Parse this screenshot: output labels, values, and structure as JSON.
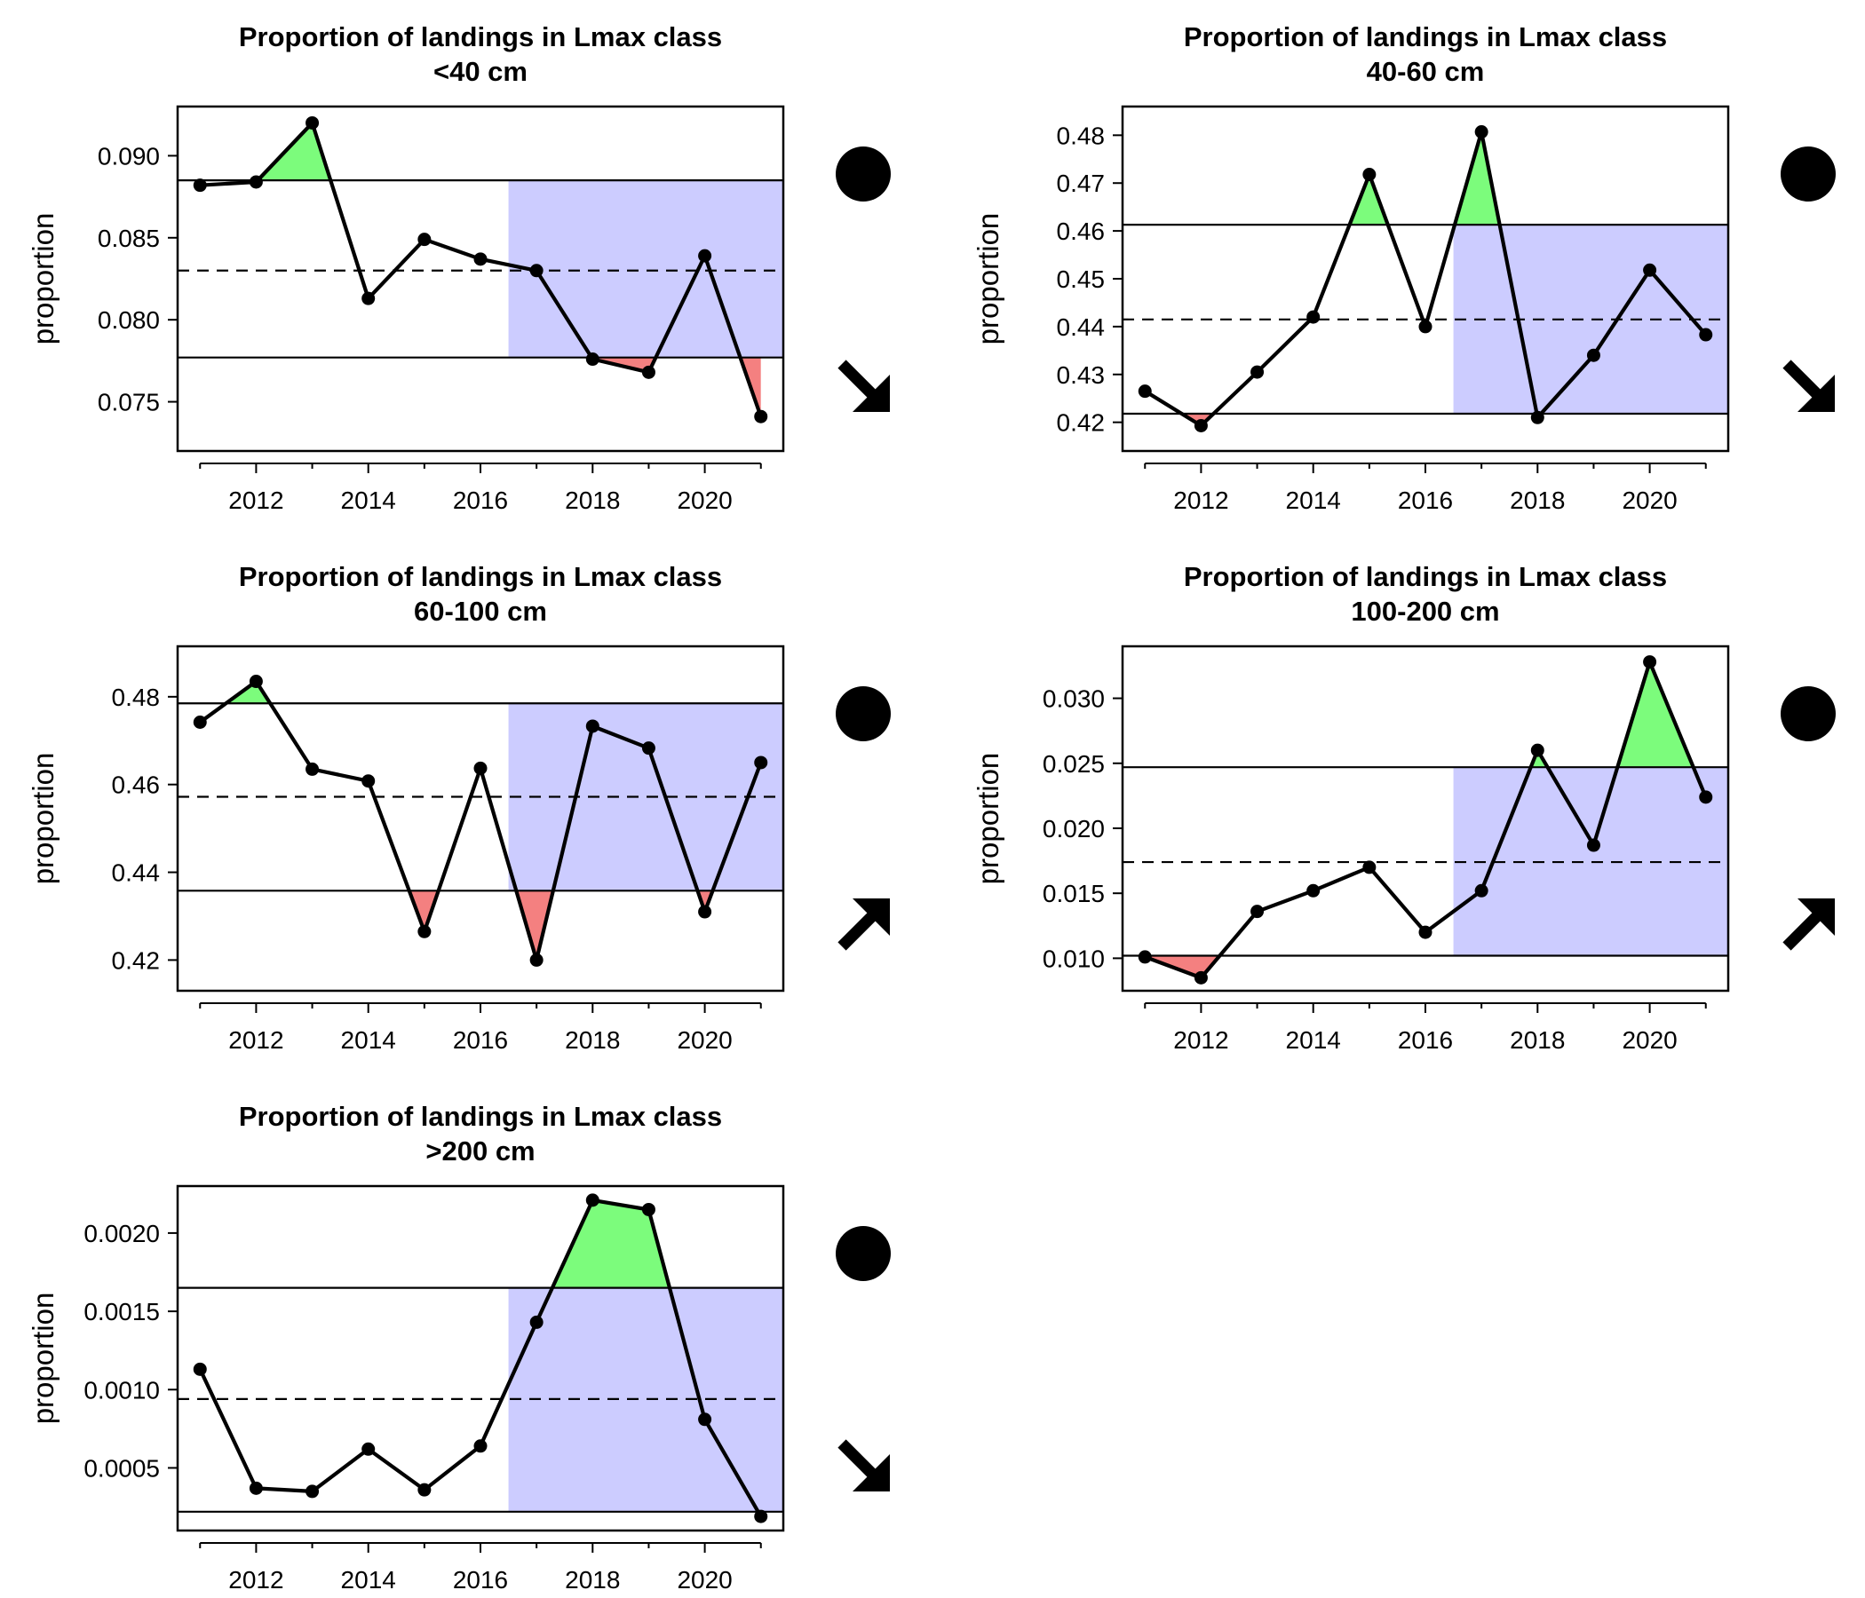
{
  "chart_data": [
    {
      "type": "line",
      "title": "Proportion of landings in Lmax class",
      "subtitle": "<40 cm",
      "ylabel": "proportion",
      "xlabel": "",
      "x": [
        2011,
        2012,
        2013,
        2014,
        2015,
        2016,
        2017,
        2018,
        2019,
        2020,
        2021
      ],
      "values": [
        0.0882,
        0.0884,
        0.092,
        0.0813,
        0.0849,
        0.0837,
        0.083,
        0.0776,
        0.0768,
        0.0839,
        0.0741
      ],
      "upper_line": 0.0885,
      "mean_line": 0.083,
      "lower_line": 0.0777,
      "shaded_from_year": 2016.5,
      "xticks": [
        "2012",
        "2014",
        "2016",
        "2018",
        "2020"
      ],
      "yticks": [
        "0.075",
        "0.080",
        "0.085",
        "0.090"
      ],
      "xlim": [
        2010.6,
        2021.4
      ],
      "ylim": [
        0.072,
        0.093
      ],
      "status_symbol": "filled-circle",
      "trend_symbol": "arrow-down-right"
    },
    {
      "type": "line",
      "title": "Proportion of landings in Lmax class",
      "subtitle": "40-60 cm",
      "ylabel": "proportion",
      "xlabel": "",
      "x": [
        2011,
        2012,
        2013,
        2014,
        2015,
        2016,
        2017,
        2018,
        2019,
        2020,
        2021
      ],
      "values": [
        0.4265,
        0.4193,
        0.4305,
        0.442,
        0.4718,
        0.44,
        0.4807,
        0.421,
        0.434,
        0.4518,
        0.4383
      ],
      "upper_line": 0.4613,
      "mean_line": 0.4415,
      "lower_line": 0.4218,
      "shaded_from_year": 2016.5,
      "xticks": [
        "2012",
        "2014",
        "2016",
        "2018",
        "2020"
      ],
      "yticks": [
        "0.42",
        "0.43",
        "0.44",
        "0.45",
        "0.46",
        "0.47",
        "0.48"
      ],
      "xlim": [
        2010.6,
        2021.4
      ],
      "ylim": [
        0.414,
        0.486
      ],
      "status_symbol": "filled-circle",
      "trend_symbol": "arrow-down-right"
    },
    {
      "type": "line",
      "title": "Proportion of landings in Lmax class",
      "subtitle": "60-100 cm",
      "ylabel": "proportion",
      "xlabel": "",
      "x": [
        2011,
        2012,
        2013,
        2014,
        2015,
        2016,
        2017,
        2018,
        2019,
        2020,
        2021
      ],
      "values": [
        0.4742,
        0.4835,
        0.4635,
        0.4608,
        0.4265,
        0.4637,
        0.42,
        0.4733,
        0.4683,
        0.431,
        0.465
      ],
      "upper_line": 0.4785,
      "mean_line": 0.4572,
      "lower_line": 0.4358,
      "shaded_from_year": 2016.5,
      "xticks": [
        "2012",
        "2014",
        "2016",
        "2018",
        "2020"
      ],
      "yticks": [
        "0.42",
        "0.44",
        "0.46",
        "0.48"
      ],
      "xlim": [
        2010.6,
        2021.4
      ],
      "ylim": [
        0.413,
        0.4915
      ],
      "status_symbol": "filled-circle",
      "trend_symbol": "arrow-up-right"
    },
    {
      "type": "line",
      "title": "Proportion of landings in Lmax class",
      "subtitle": "100-200 cm",
      "ylabel": "proportion",
      "xlabel": "",
      "x": [
        2011,
        2012,
        2013,
        2014,
        2015,
        2016,
        2017,
        2018,
        2019,
        2020,
        2021
      ],
      "values": [
        0.0101,
        0.0085,
        0.0136,
        0.0152,
        0.017,
        0.012,
        0.0152,
        0.026,
        0.0187,
        0.0328,
        0.0224
      ],
      "upper_line": 0.0247,
      "mean_line": 0.0174,
      "lower_line": 0.0102,
      "shaded_from_year": 2016.5,
      "xticks": [
        "2012",
        "2014",
        "2016",
        "2018",
        "2020"
      ],
      "yticks": [
        "0.010",
        "0.015",
        "0.020",
        "0.025",
        "0.030"
      ],
      "xlim": [
        2010.6,
        2021.4
      ],
      "ylim": [
        0.0075,
        0.034
      ],
      "status_symbol": "filled-circle",
      "trend_symbol": "arrow-up-right"
    },
    {
      "type": "line",
      "title": "Proportion of landings in Lmax class",
      "subtitle": ">200 cm",
      "ylabel": "proportion",
      "xlabel": "",
      "x": [
        2011,
        2012,
        2013,
        2014,
        2015,
        2016,
        2017,
        2018,
        2019,
        2020,
        2021
      ],
      "values": [
        0.00113,
        0.00037,
        0.00035,
        0.00062,
        0.00036,
        0.00064,
        0.00143,
        0.00221,
        0.00215,
        0.00081,
        0.00019
      ],
      "upper_line": 0.00165,
      "mean_line": 0.00094,
      "lower_line": 0.00022,
      "shaded_from_year": 2016.5,
      "xticks": [
        "2012",
        "2014",
        "2016",
        "2018",
        "2020"
      ],
      "yticks": [
        "0.0005",
        "0.0010",
        "0.0015",
        "0.0020"
      ],
      "xlim": [
        2010.6,
        2021.4
      ],
      "ylim": [
        0.0001,
        0.0023
      ],
      "status_symbol": "filled-circle",
      "trend_symbol": "arrow-down-right"
    }
  ],
  "colors": {
    "above_upper_fill": "#7CFC7C",
    "below_lower_fill": "#F48080",
    "recent_period_fill": "#CCCCFF",
    "line": "#000000"
  }
}
